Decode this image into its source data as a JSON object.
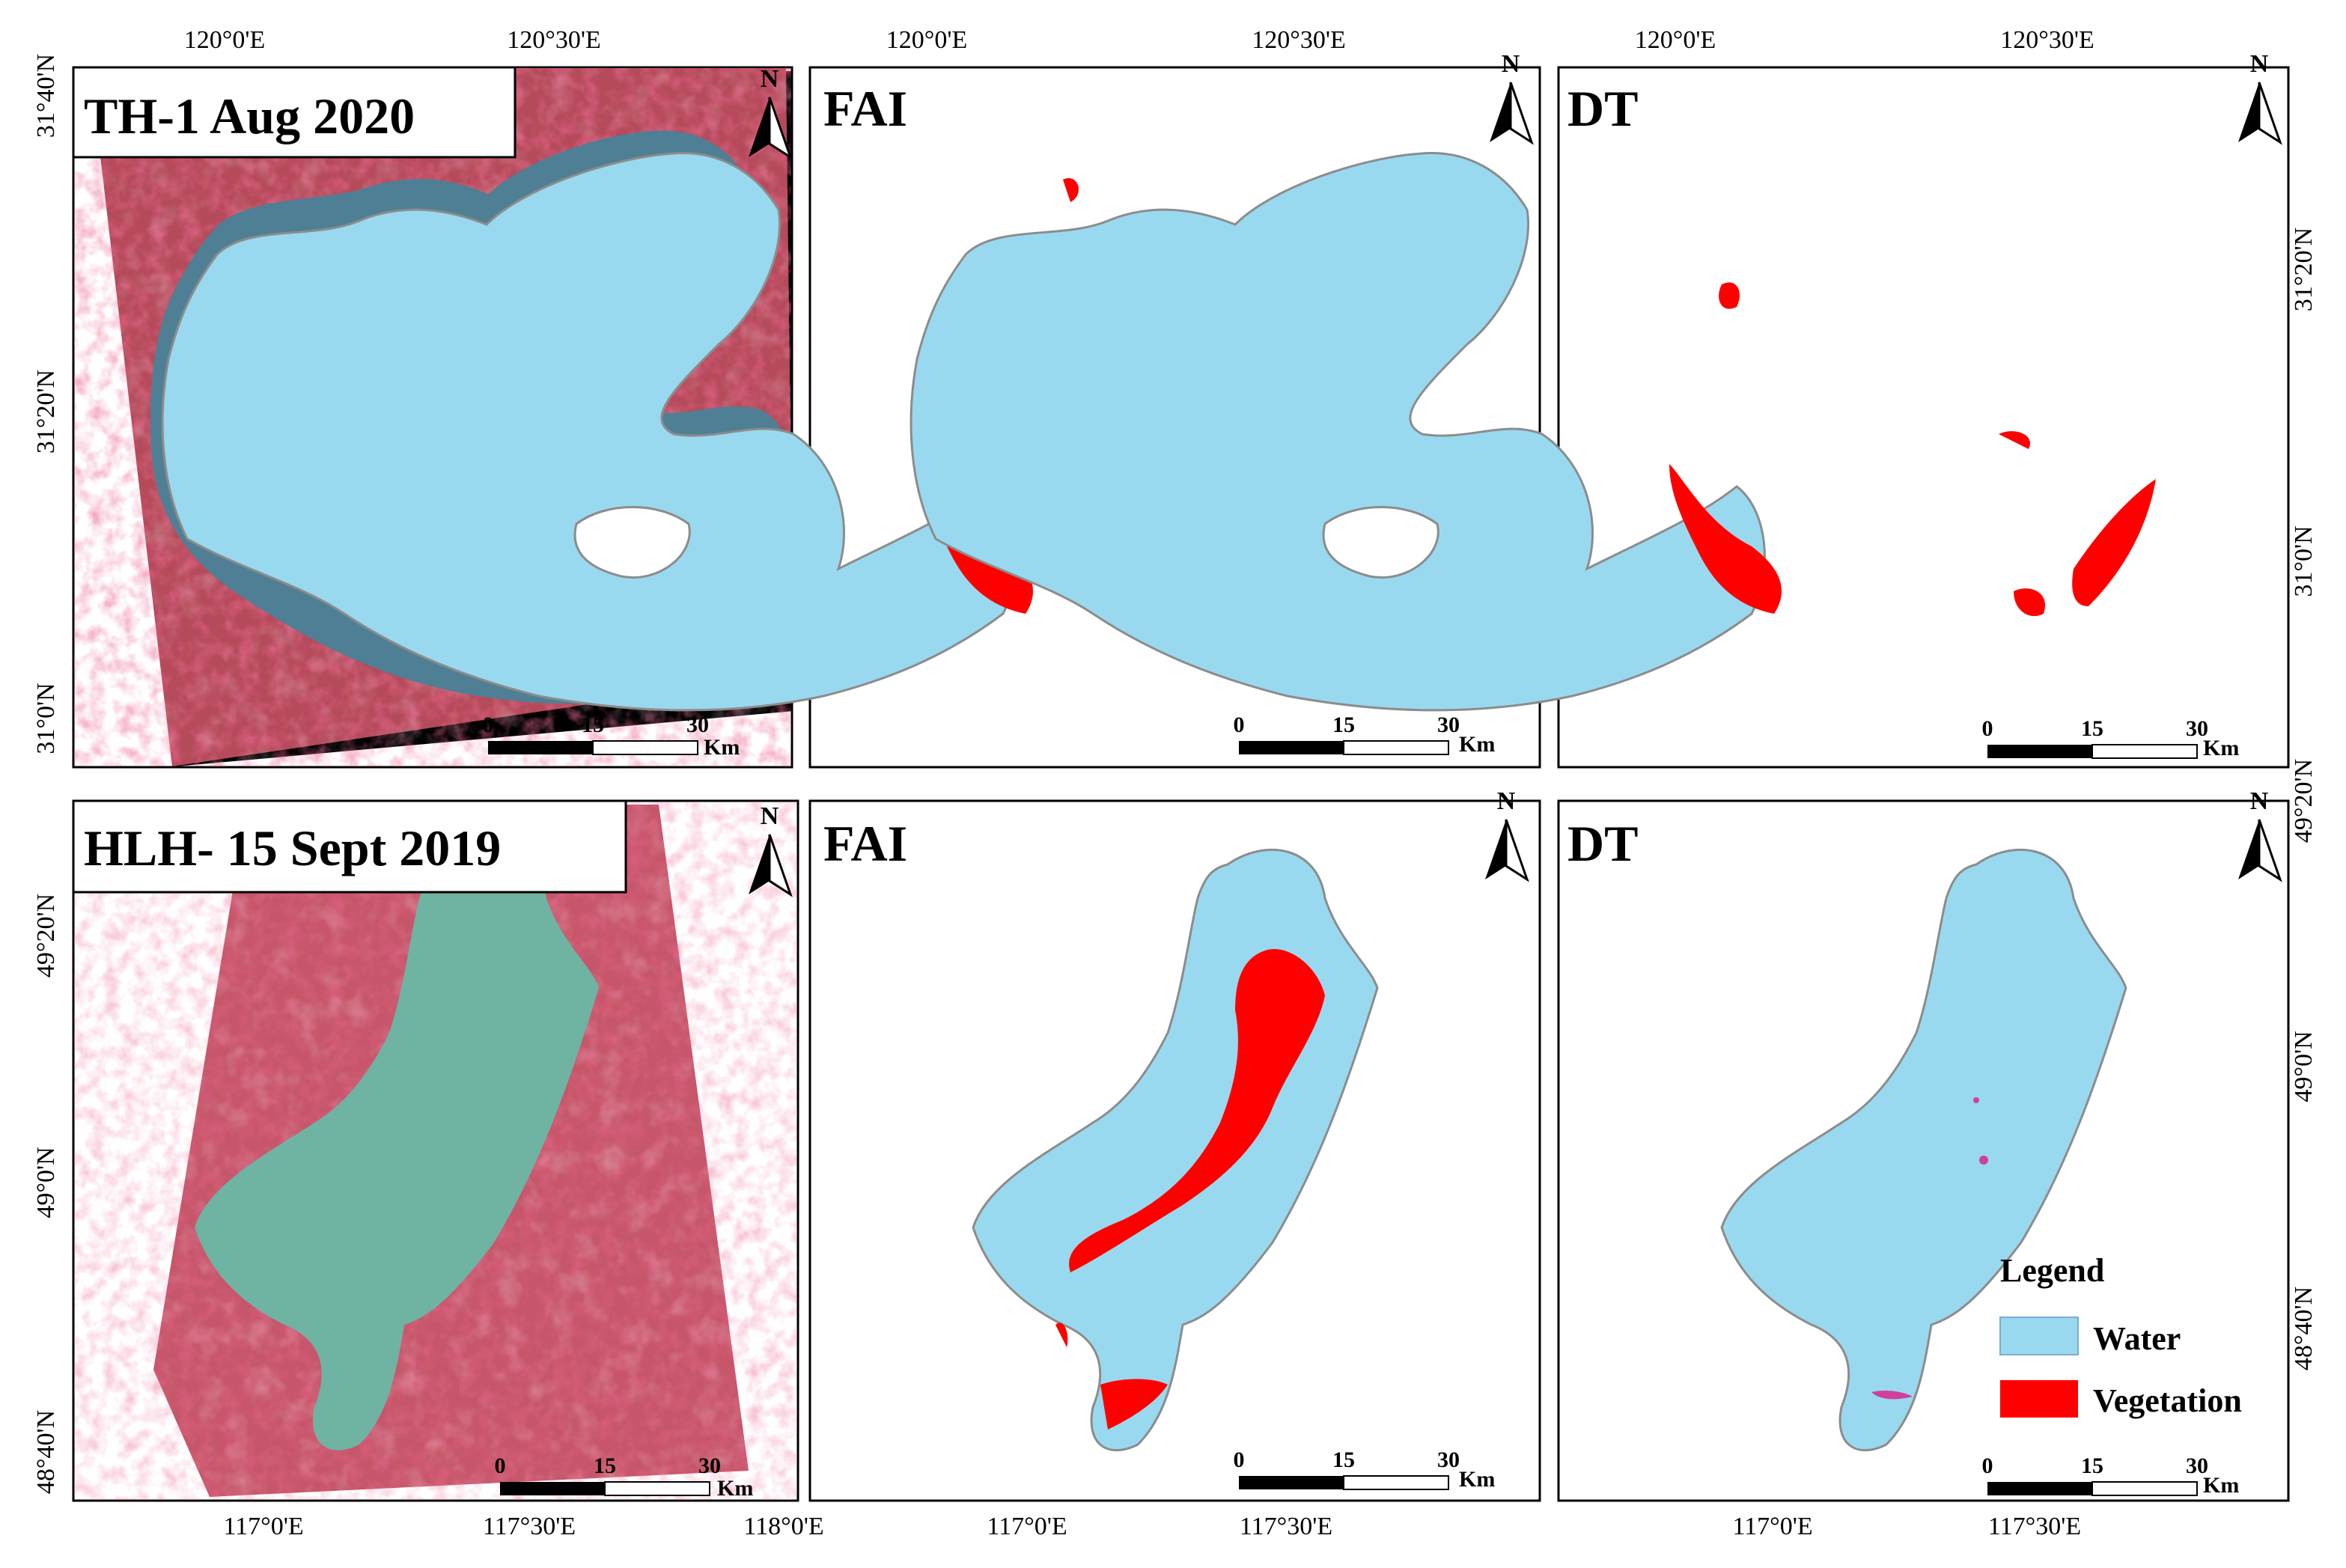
{
  "figure": {
    "colors": {
      "water": "#99d9ef",
      "vegetation": "#ff0000",
      "lake_outline": "#9a9a9a",
      "frame": "#000000"
    },
    "north_label": "N",
    "scalebar": {
      "labels": [
        "0",
        "15",
        "30"
      ],
      "unit": "Km"
    },
    "ticks": {
      "th_top": [
        "120°0'E",
        "120°30'E"
      ],
      "th_left": [
        "31°40'N",
        "31°20'N",
        "31°0'N"
      ],
      "th_right": [
        "31°20'N",
        "31°0'N"
      ],
      "hlh_left": [
        "49°20'N",
        "49°0'N",
        "48°40'N"
      ],
      "hlh_right": [
        "49°20'N",
        "49°0'N",
        "48°40'N"
      ],
      "hlh_bottom": [
        "117°0'E",
        "117°30'E",
        "118°0'E"
      ],
      "hlh_bottom_short": [
        "117°0'E",
        "117°30'E"
      ]
    },
    "panels": [
      {
        "id": "th-image",
        "title": "TH-1 Aug 2020",
        "type": "false-color image"
      },
      {
        "id": "th-fai",
        "title": "FAI",
        "type": "classification"
      },
      {
        "id": "th-dt",
        "title": "DT",
        "type": "classification"
      },
      {
        "id": "hlh-image",
        "title": "HLH- 15 Sept 2019",
        "type": "false-color image"
      },
      {
        "id": "hlh-fai",
        "title": "FAI",
        "type": "classification"
      },
      {
        "id": "hlh-dt",
        "title": "DT",
        "type": "classification"
      }
    ],
    "legend": {
      "title": "Legend",
      "items": [
        {
          "label": "Water",
          "color": "#99d9ef"
        },
        {
          "label": "Vegetation",
          "color": "#ff0000"
        }
      ]
    }
  }
}
